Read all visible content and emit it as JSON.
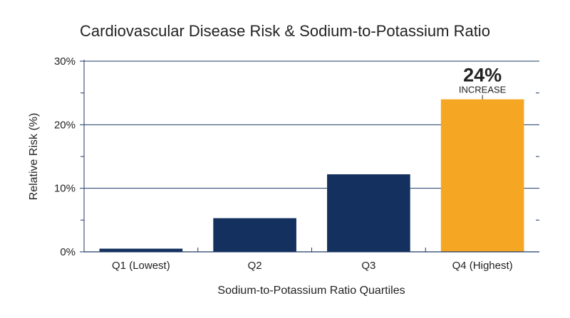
{
  "chart_data": {
    "type": "bar",
    "title": "Cardiovascular Disease Risk & Sodium-to-Potassium Ratio",
    "xlabel": "Sodium-to-Potassium Ratio Quartiles",
    "ylabel": "Relative Risk (%)",
    "categories": [
      "Q1 (Lowest)",
      "Q2",
      "Q3",
      "Q4 (Highest)"
    ],
    "values": [
      0.5,
      5.3,
      12.2,
      24
    ],
    "ylim": [
      0,
      30
    ],
    "y_ticks": [
      0,
      10,
      20,
      30
    ],
    "y_tick_labels": [
      "0%",
      "10%",
      "20%",
      "30%"
    ],
    "grid": true,
    "colors": {
      "bar": "#13305e",
      "highlight": "#f5a623",
      "grid": "#1e3a66"
    },
    "highlight_index": 3,
    "annotation": {
      "value": "24%",
      "label": "INCREASE"
    }
  }
}
